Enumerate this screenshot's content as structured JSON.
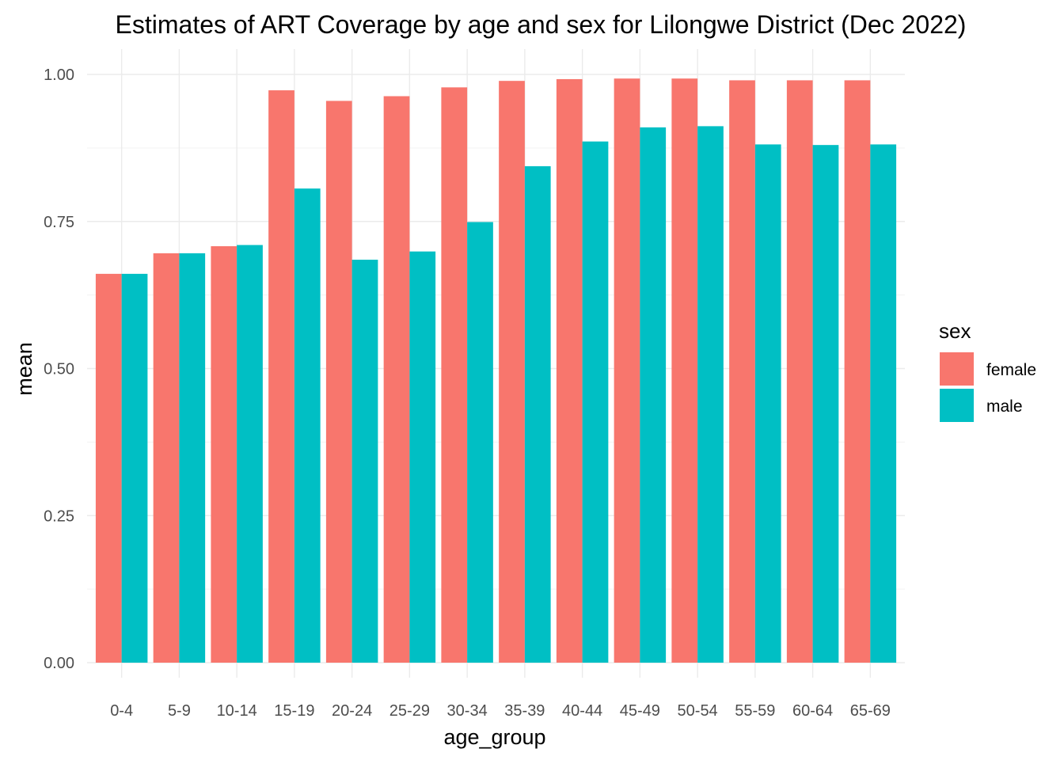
{
  "chart_data": {
    "type": "bar",
    "title": "Estimates of ART Coverage by age and sex for Lilongwe District (Dec 2022)",
    "xlabel": "age_group",
    "ylabel": "mean",
    "categories": [
      "0-4",
      "5-9",
      "10-14",
      "15-19",
      "20-24",
      "25-29",
      "30-34",
      "35-39",
      "40-44",
      "45-49",
      "50-54",
      "55-59",
      "60-64",
      "65-69"
    ],
    "series": [
      {
        "name": "female",
        "color": "#F8766D",
        "values": [
          0.661,
          0.696,
          0.708,
          0.973,
          0.955,
          0.963,
          0.978,
          0.989,
          0.992,
          0.993,
          0.993,
          0.99,
          0.99,
          0.99
        ]
      },
      {
        "name": "male",
        "color": "#00BFC4",
        "values": [
          0.661,
          0.696,
          0.71,
          0.806,
          0.685,
          0.699,
          0.749,
          0.844,
          0.886,
          0.91,
          0.912,
          0.881,
          0.88,
          0.881
        ]
      }
    ],
    "ylim": [
      0,
      1.0
    ],
    "yticks": [
      "0.00",
      "0.25",
      "0.50",
      "0.75",
      "1.00"
    ],
    "grid": true,
    "legend": {
      "title": "sex",
      "placement": "right"
    }
  }
}
